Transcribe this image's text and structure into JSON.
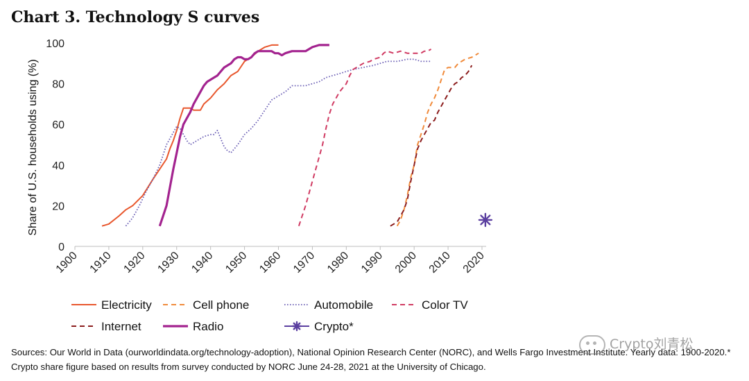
{
  "title": "Chart 3. Technology S curves",
  "chart_data": {
    "type": "line",
    "title": "Chart 3. Technology S curves",
    "ylabel": "Share of U.S. households using (%)",
    "xlabel": "",
    "xlim": [
      1900,
      2020
    ],
    "ylim": [
      0,
      100
    ],
    "x_ticks": [
      1900,
      1910,
      1920,
      1930,
      1940,
      1950,
      1960,
      1970,
      1980,
      1990,
      2000,
      2010,
      2020
    ],
    "y_ticks": [
      0,
      20,
      40,
      60,
      80,
      100
    ],
    "grid": false,
    "legend_position": "bottom",
    "series": [
      {
        "name": "Electricity",
        "style": "solid",
        "color": "#e8562c",
        "width": 2,
        "points": [
          [
            1908,
            10
          ],
          [
            1910,
            11
          ],
          [
            1913,
            15
          ],
          [
            1915,
            18
          ],
          [
            1917,
            20
          ],
          [
            1920,
            25
          ],
          [
            1923,
            33
          ],
          [
            1925,
            38
          ],
          [
            1927,
            43
          ],
          [
            1928,
            48
          ],
          [
            1929,
            52
          ],
          [
            1930,
            57
          ],
          [
            1931,
            63
          ],
          [
            1932,
            68
          ],
          [
            1934,
            68
          ],
          [
            1935,
            67
          ],
          [
            1937,
            67
          ],
          [
            1938,
            70
          ],
          [
            1940,
            73
          ],
          [
            1942,
            77
          ],
          [
            1944,
            80
          ],
          [
            1945,
            82
          ],
          [
            1946,
            84
          ],
          [
            1948,
            86
          ],
          [
            1950,
            91
          ],
          [
            1952,
            93
          ],
          [
            1954,
            96
          ],
          [
            1956,
            98
          ],
          [
            1958,
            99
          ],
          [
            1960,
            99
          ]
        ]
      },
      {
        "name": "Cell phone",
        "style": "dashed",
        "color": "#f08a3a",
        "width": 2,
        "points": [
          [
            1995,
            10
          ],
          [
            1996,
            13
          ],
          [
            1997,
            18
          ],
          [
            1998,
            25
          ],
          [
            1999,
            34
          ],
          [
            2000,
            40
          ],
          [
            2001,
            50
          ],
          [
            2002,
            55
          ],
          [
            2003,
            60
          ],
          [
            2004,
            66
          ],
          [
            2005,
            70
          ],
          [
            2006,
            73
          ],
          [
            2007,
            77
          ],
          [
            2008,
            82
          ],
          [
            2009,
            87
          ],
          [
            2010,
            88
          ],
          [
            2011,
            88
          ],
          [
            2012,
            88
          ],
          [
            2013,
            90
          ],
          [
            2015,
            92
          ],
          [
            2017,
            93
          ],
          [
            2019,
            95
          ]
        ]
      },
      {
        "name": "Automobile",
        "style": "dotted",
        "color": "#6b5fb5",
        "width": 1.8,
        "points": [
          [
            1915,
            10
          ],
          [
            1917,
            14
          ],
          [
            1919,
            20
          ],
          [
            1921,
            27
          ],
          [
            1923,
            33
          ],
          [
            1925,
            40
          ],
          [
            1927,
            50
          ],
          [
            1929,
            56
          ],
          [
            1930,
            59
          ],
          [
            1931,
            58
          ],
          [
            1932,
            55
          ],
          [
            1933,
            52
          ],
          [
            1934,
            50
          ],
          [
            1936,
            52
          ],
          [
            1938,
            54
          ],
          [
            1940,
            55
          ],
          [
            1941,
            55
          ],
          [
            1942,
            57
          ],
          [
            1943,
            53
          ],
          [
            1944,
            49
          ],
          [
            1945,
            47
          ],
          [
            1946,
            46
          ],
          [
            1948,
            50
          ],
          [
            1950,
            55
          ],
          [
            1952,
            58
          ],
          [
            1954,
            62
          ],
          [
            1956,
            67
          ],
          [
            1958,
            72
          ],
          [
            1960,
            74
          ],
          [
            1962,
            76
          ],
          [
            1964,
            79
          ],
          [
            1966,
            79
          ],
          [
            1968,
            79
          ],
          [
            1970,
            80
          ],
          [
            1972,
            81
          ],
          [
            1974,
            83
          ],
          [
            1976,
            84
          ],
          [
            1978,
            85
          ],
          [
            1980,
            86
          ],
          [
            1982,
            87
          ],
          [
            1985,
            88
          ],
          [
            1988,
            89
          ],
          [
            1990,
            90
          ],
          [
            1992,
            91
          ],
          [
            1995,
            91
          ],
          [
            1998,
            92
          ],
          [
            2000,
            92
          ],
          [
            2002,
            91
          ],
          [
            2005,
            91
          ]
        ]
      },
      {
        "name": "Color TV",
        "style": "dashed",
        "color": "#d03a62",
        "width": 2,
        "points": [
          [
            1966,
            10
          ],
          [
            1967,
            15
          ],
          [
            1968,
            20
          ],
          [
            1969,
            26
          ],
          [
            1970,
            32
          ],
          [
            1971,
            38
          ],
          [
            1972,
            44
          ],
          [
            1973,
            50
          ],
          [
            1974,
            58
          ],
          [
            1975,
            65
          ],
          [
            1976,
            70
          ],
          [
            1977,
            73
          ],
          [
            1978,
            76
          ],
          [
            1979,
            78
          ],
          [
            1980,
            80
          ],
          [
            1981,
            84
          ],
          [
            1982,
            87
          ],
          [
            1983,
            88
          ],
          [
            1985,
            90
          ],
          [
            1987,
            91
          ],
          [
            1988,
            92
          ],
          [
            1990,
            93
          ],
          [
            1991,
            95
          ],
          [
            1992,
            96
          ],
          [
            1994,
            95
          ],
          [
            1996,
            96
          ],
          [
            1998,
            95
          ],
          [
            2000,
            95
          ],
          [
            2002,
            95
          ],
          [
            2003,
            96
          ],
          [
            2004,
            96
          ],
          [
            2005,
            97
          ]
        ]
      },
      {
        "name": "Internet",
        "style": "dashed",
        "color": "#8b1c1c",
        "width": 2,
        "points": [
          [
            1993,
            10
          ],
          [
            1995,
            12
          ],
          [
            1997,
            18
          ],
          [
            1998,
            23
          ],
          [
            1999,
            32
          ],
          [
            2000,
            40
          ],
          [
            2001,
            48
          ],
          [
            2002,
            52
          ],
          [
            2003,
            55
          ],
          [
            2004,
            58
          ],
          [
            2005,
            61
          ],
          [
            2006,
            62
          ],
          [
            2007,
            66
          ],
          [
            2008,
            69
          ],
          [
            2009,
            72
          ],
          [
            2010,
            75
          ],
          [
            2011,
            78
          ],
          [
            2012,
            80
          ],
          [
            2013,
            81
          ],
          [
            2014,
            83
          ],
          [
            2015,
            84
          ],
          [
            2016,
            86
          ],
          [
            2017,
            89
          ]
        ]
      },
      {
        "name": "Radio",
        "style": "solid",
        "color": "#a3238f",
        "width": 3.2,
        "points": [
          [
            1925,
            10
          ],
          [
            1926,
            15
          ],
          [
            1927,
            20
          ],
          [
            1928,
            29
          ],
          [
            1929,
            38
          ],
          [
            1930,
            46
          ],
          [
            1931,
            54
          ],
          [
            1932,
            60
          ],
          [
            1933,
            63
          ],
          [
            1934,
            66
          ],
          [
            1935,
            70
          ],
          [
            1936,
            73
          ],
          [
            1937,
            76
          ],
          [
            1938,
            79
          ],
          [
            1939,
            81
          ],
          [
            1940,
            82
          ],
          [
            1941,
            83
          ],
          [
            1942,
            84
          ],
          [
            1943,
            86
          ],
          [
            1944,
            88
          ],
          [
            1945,
            89
          ],
          [
            1946,
            90
          ],
          [
            1947,
            92
          ],
          [
            1948,
            93
          ],
          [
            1949,
            93
          ],
          [
            1950,
            92
          ],
          [
            1951,
            92
          ],
          [
            1952,
            93
          ],
          [
            1953,
            95
          ],
          [
            1954,
            96
          ],
          [
            1956,
            96
          ],
          [
            1958,
            96
          ],
          [
            1959,
            95
          ],
          [
            1960,
            95
          ],
          [
            1961,
            94
          ],
          [
            1962,
            95
          ],
          [
            1964,
            96
          ],
          [
            1966,
            96
          ],
          [
            1968,
            96
          ],
          [
            1970,
            98
          ],
          [
            1972,
            99
          ],
          [
            1975,
            99
          ]
        ]
      }
    ],
    "markers": [
      {
        "name": "Crypto*",
        "x": 2021,
        "y": 13,
        "symbol": "asterisk",
        "color": "#5b3fa0"
      }
    ],
    "legend": [
      "Electricity",
      "Cell phone",
      "Automobile",
      "Color TV",
      "Internet",
      "Radio",
      "Crypto*"
    ]
  },
  "sources": {
    "line1": "Sources: Our World in Data (ourworldindata.org/technology-adoption), National Opinion Research Center (NORC), and Wells Fargo Investment Institute. Yearly data: 1900-2020.*",
    "line2": "Crypto share figure based on results from survey conducted by NORC June 24-28, 2021 at the University of Chicago."
  },
  "watermark": "Crypto刘青松"
}
